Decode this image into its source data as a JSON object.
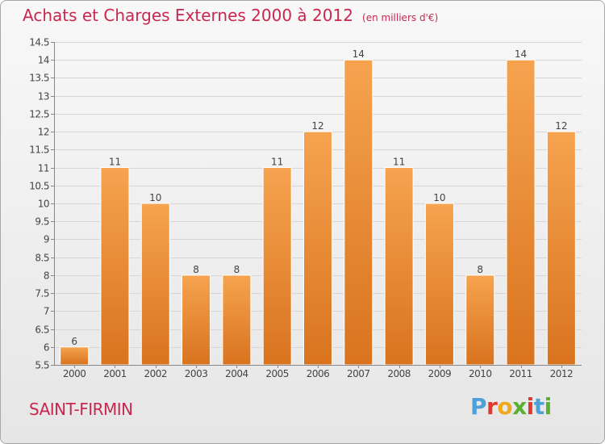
{
  "header": {
    "title": "Achats et Charges Externes 2000 à 2012",
    "subtitle": "(en milliers d'€)"
  },
  "footer": {
    "commune": "SAINT-FIRMIN",
    "brand": "Proxiti"
  },
  "colors": {
    "accent": "#c8284f",
    "bar_light": "#f6a34f",
    "bar_dark": "#d9731e"
  },
  "chart_data": {
    "type": "bar",
    "categories": [
      "2000",
      "2001",
      "2002",
      "2003",
      "2004",
      "2005",
      "2006",
      "2007",
      "2008",
      "2009",
      "2010",
      "2011",
      "2012"
    ],
    "values": [
      6,
      11,
      10,
      8,
      8,
      11,
      12,
      14,
      11,
      10,
      8,
      14,
      12
    ],
    "data_labels": [
      "6",
      "11",
      "10",
      "8",
      "8",
      "11",
      "12",
      "14",
      "11",
      "10",
      "8",
      "14",
      "12"
    ],
    "ylim": [
      5.5,
      14.5
    ],
    "yticks": [
      "5.5",
      "6",
      "6.5",
      "7",
      "7.5",
      "8",
      "8.5",
      "9",
      "9.5",
      "10",
      "10.5",
      "11",
      "11.5",
      "12",
      "12.5",
      "13",
      "13.5",
      "14",
      "14.5"
    ],
    "grid": true
  }
}
